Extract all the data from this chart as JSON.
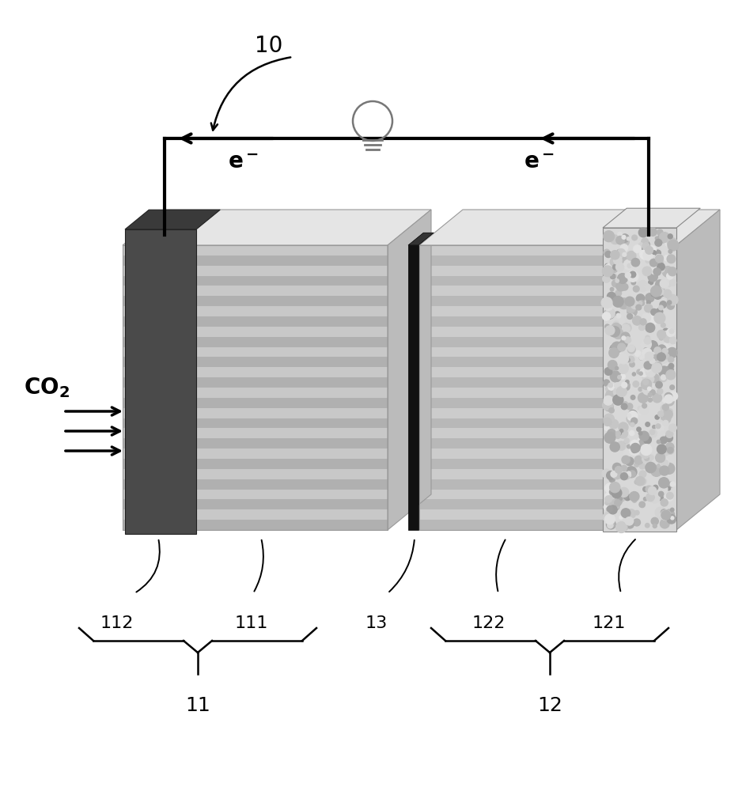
{
  "bg_color": "#ffffff",
  "line_color": "#000000",
  "n_stripes": 28,
  "stripe_colors_left": [
    "#c8c8c8",
    "#b0b0b0"
  ],
  "stripe_colors_right": [
    "#cccccc",
    "#b8b8b8"
  ],
  "top_face_color": "#e5e5e5",
  "right_face_color": "#bbbbbb",
  "dark_electrode_color": "#4a4a4a",
  "separator_color": "#111111",
  "texture_base_color": "#d8d8d8",
  "circuit_lw": 3.0,
  "label_fontsize": 16,
  "e_label_fontsize": 20
}
